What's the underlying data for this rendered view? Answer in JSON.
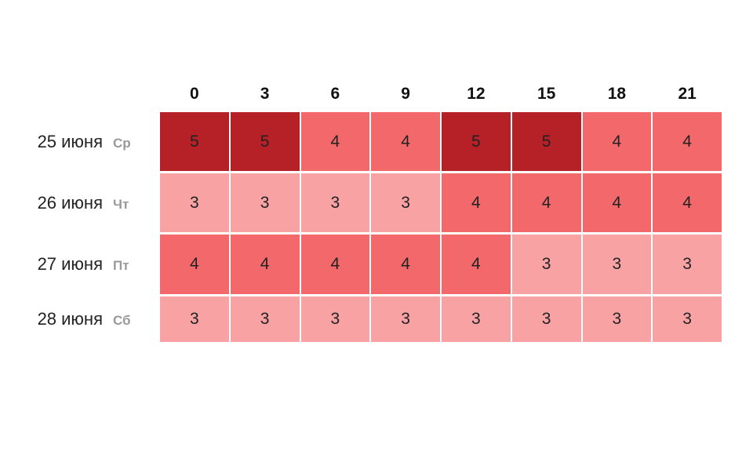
{
  "table": {
    "columns": [
      "0",
      "3",
      "6",
      "9",
      "12",
      "15",
      "18",
      "21"
    ],
    "rows": [
      {
        "date": "25 июня",
        "weekday": "Ср",
        "values": [
          5,
          5,
          4,
          4,
          5,
          5,
          4,
          4
        ]
      },
      {
        "date": "26 июня",
        "weekday": "Чт",
        "values": [
          3,
          3,
          3,
          3,
          4,
          4,
          4,
          4
        ]
      },
      {
        "date": "27 июня",
        "weekday": "Пт",
        "values": [
          4,
          4,
          4,
          4,
          4,
          3,
          3,
          3
        ]
      },
      {
        "date": "28 июня",
        "weekday": "Сб",
        "values": [
          3,
          3,
          3,
          3,
          3,
          3,
          3,
          3
        ]
      }
    ],
    "colors": {
      "3": "#f8a2a4",
      "4": "#f2686b",
      "5": "#b52127"
    }
  }
}
